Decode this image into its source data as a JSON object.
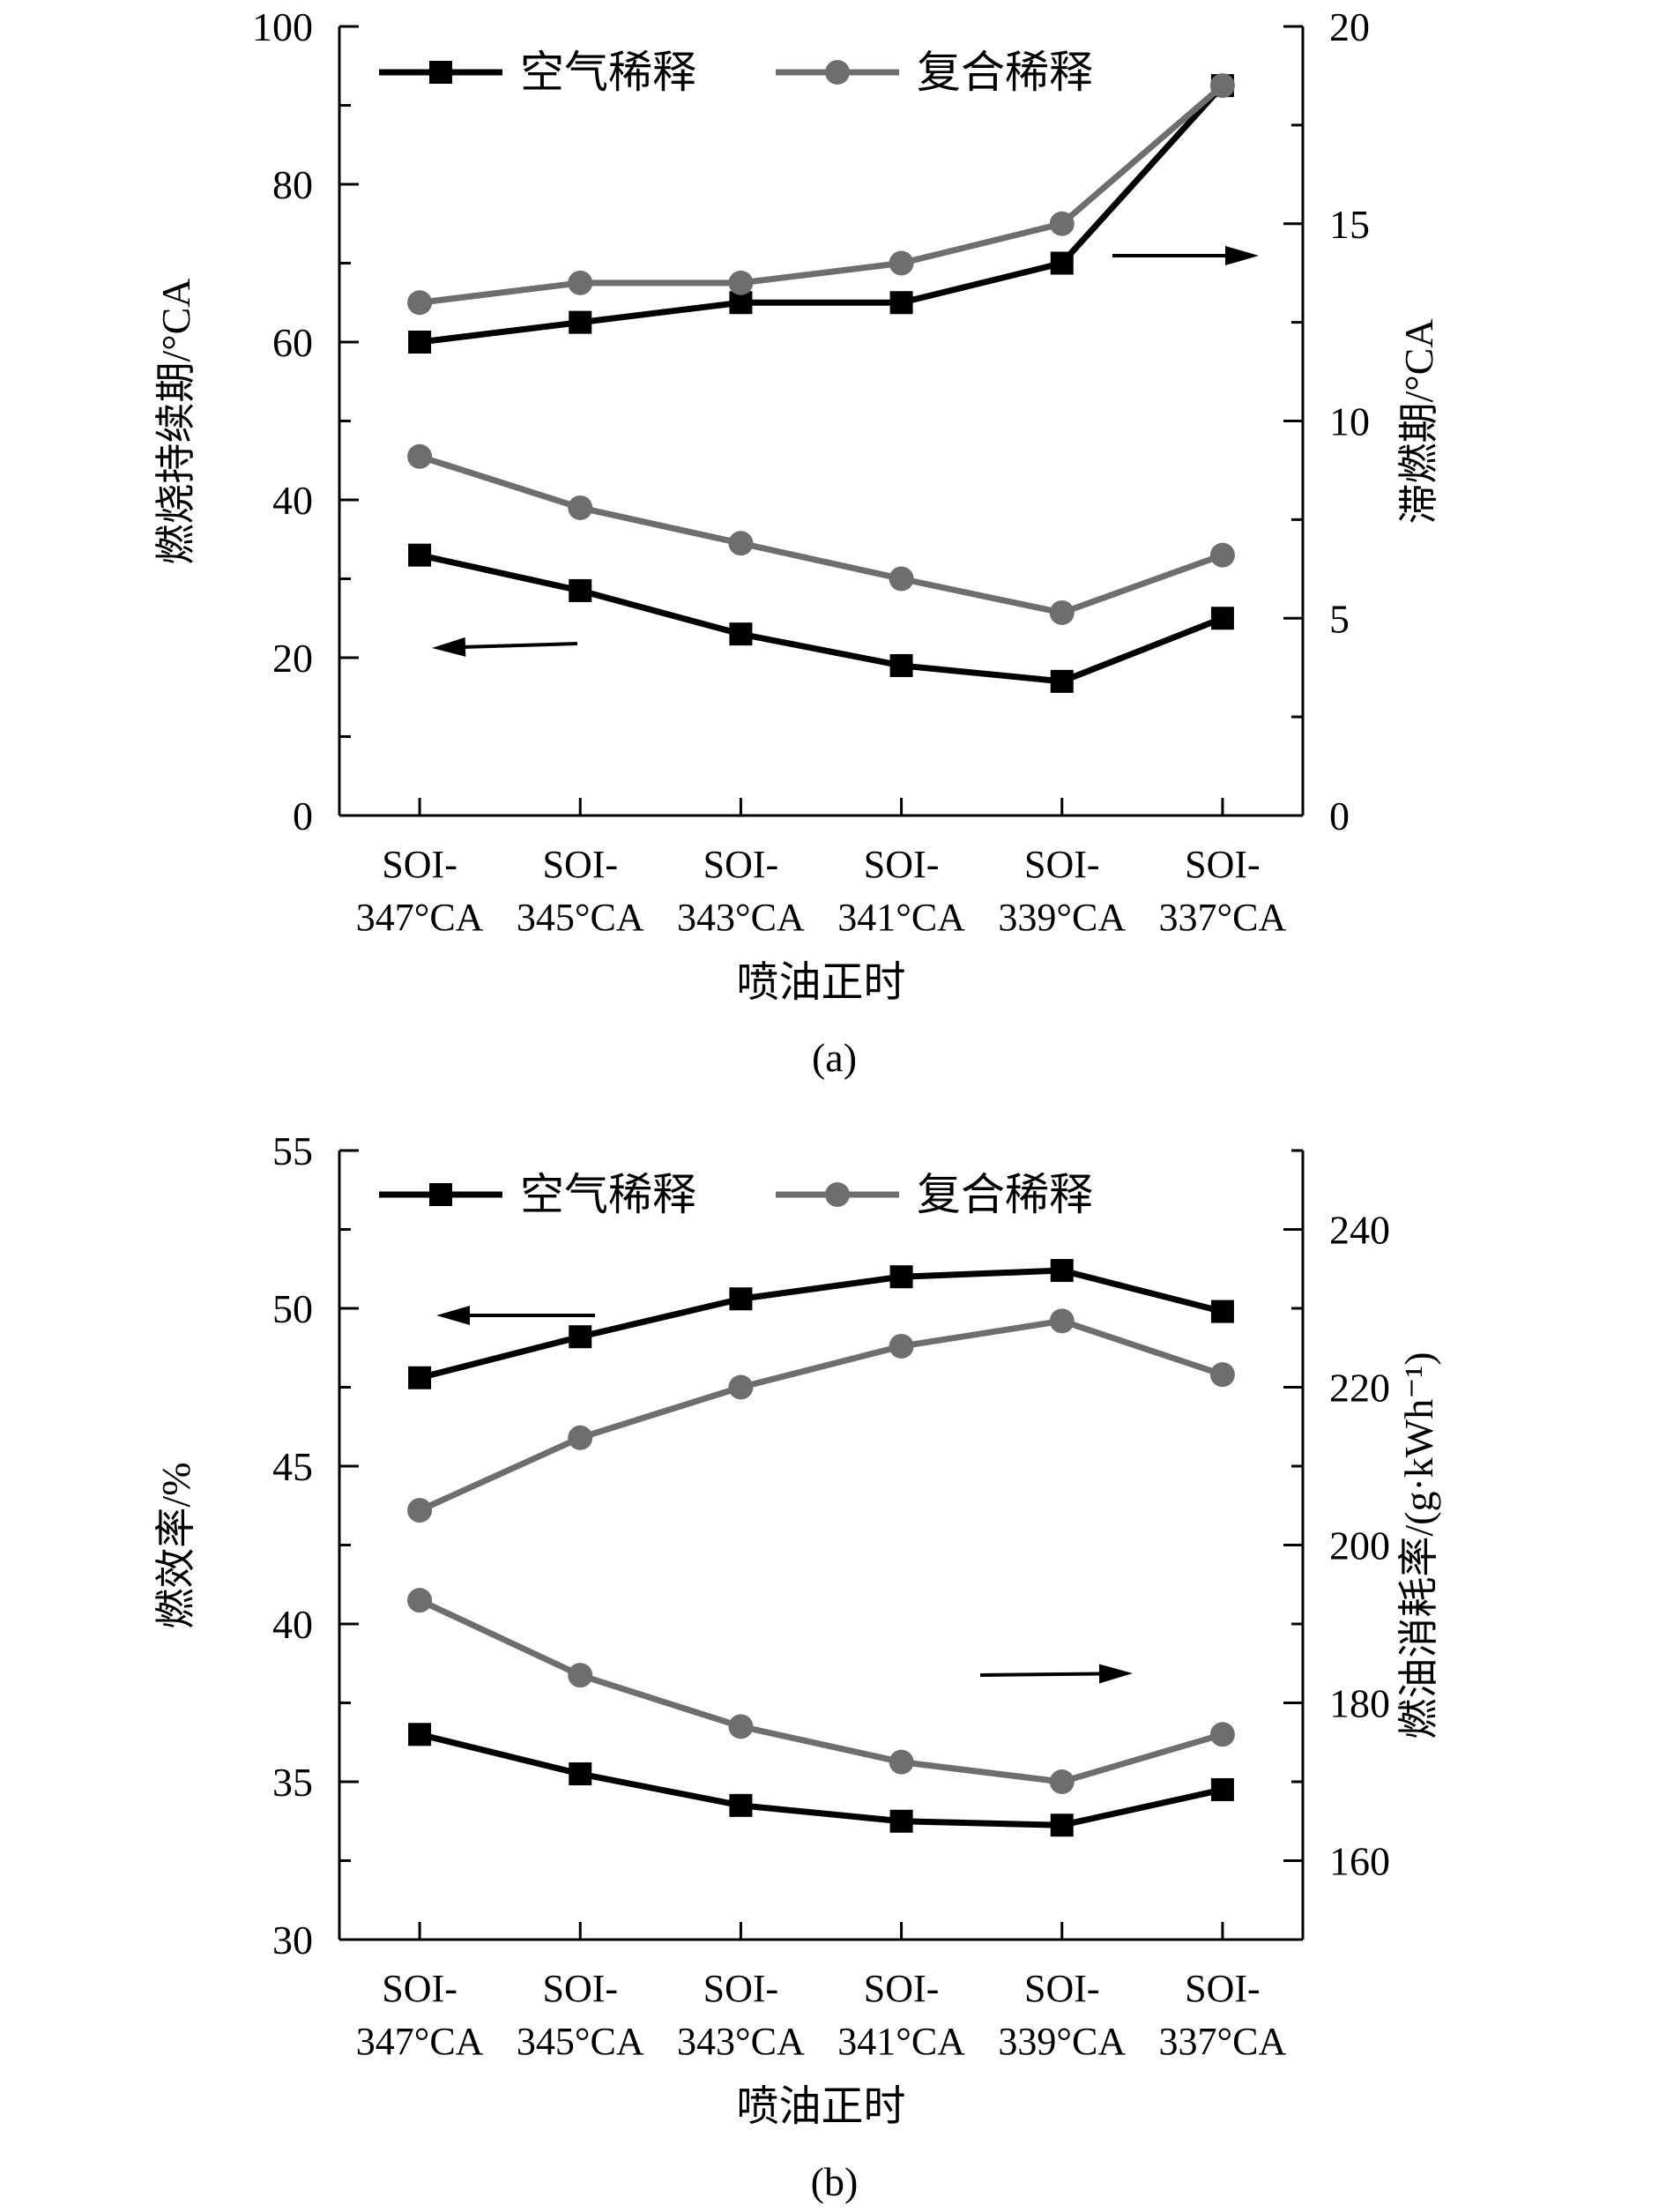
{
  "colors": {
    "air": "#000000",
    "composite": "#6e6e6e",
    "axis": "#000000",
    "background": "#ffffff"
  },
  "chart_data": [
    {
      "id": "a",
      "type": "line",
      "panel_label": "(a)",
      "xlabel": "喷油正时",
      "categories": [
        [
          "SOI-",
          "347°CA"
        ],
        [
          "SOI-",
          "345°CA"
        ],
        [
          "SOI-",
          "343°CA"
        ],
        [
          "SOI-",
          "341°CA"
        ],
        [
          "SOI-",
          "339°CA"
        ],
        [
          "SOI-",
          "337°CA"
        ]
      ],
      "left_axis": {
        "label": "燃烧持续期/°CA",
        "ylim": [
          0,
          100
        ],
        "ticks": [
          0,
          20,
          40,
          60,
          80,
          100
        ],
        "minor_step": 10
      },
      "right_axis": {
        "label": "滞燃期/°CA",
        "ylim": [
          0,
          20
        ],
        "ticks": [
          0,
          5,
          10,
          15,
          20
        ],
        "minor_step": 2.5
      },
      "legend": {
        "position": "top-left",
        "entries": [
          {
            "name": "空气稀释",
            "marker": "square"
          },
          {
            "name": "复合稀释",
            "marker": "circle"
          }
        ]
      },
      "series": [
        {
          "name": "空气稀释",
          "marker": "square",
          "axis": "left",
          "values": [
            33,
            28.5,
            23,
            19,
            17,
            25
          ]
        },
        {
          "name": "复合稀释",
          "marker": "circle",
          "axis": "left",
          "values": [
            45.5,
            39,
            34.5,
            30,
            25.7,
            33
          ]
        },
        {
          "name": "空气稀释",
          "marker": "square",
          "axis": "right",
          "values": [
            12.0,
            12.5,
            13.0,
            13.0,
            14.0,
            18.5
          ]
        },
        {
          "name": "复合稀释",
          "marker": "circle",
          "axis": "right",
          "values": [
            13.0,
            13.5,
            13.5,
            14.0,
            15.0,
            18.5
          ]
        }
      ],
      "annotations": [
        {
          "type": "arrow",
          "direction": "left"
        },
        {
          "type": "arrow",
          "direction": "right"
        }
      ]
    },
    {
      "id": "b",
      "type": "line",
      "panel_label": "(b)",
      "xlabel": "喷油正时",
      "categories": [
        [
          "SOI-",
          "347°CA"
        ],
        [
          "SOI-",
          "345°CA"
        ],
        [
          "SOI-",
          "343°CA"
        ],
        [
          "SOI-",
          "341°CA"
        ],
        [
          "SOI-",
          "339°CA"
        ],
        [
          "SOI-",
          "337°CA"
        ]
      ],
      "left_axis": {
        "label": "燃效率/%",
        "ylim": [
          30,
          55
        ],
        "ticks": [
          30,
          35,
          40,
          45,
          50,
          55
        ],
        "minor_step": 2.5
      },
      "right_axis": {
        "label": "燃油消耗率/(g·kWh⁻¹)",
        "ylim": [
          150,
          250
        ],
        "ticks": [
          160,
          180,
          200,
          220,
          240
        ],
        "minor_step": 10
      },
      "legend": {
        "position": "top-left",
        "entries": [
          {
            "name": "空气稀释",
            "marker": "square"
          },
          {
            "name": "复合稀释",
            "marker": "circle"
          }
        ]
      },
      "series": [
        {
          "name": "空气稀释",
          "marker": "square",
          "axis": "left",
          "values": [
            47.8,
            49.1,
            50.3,
            51.0,
            51.2,
            49.9
          ]
        },
        {
          "name": "复合稀释",
          "marker": "circle",
          "axis": "left",
          "values": [
            43.6,
            45.9,
            47.5,
            48.8,
            49.6,
            47.9
          ]
        },
        {
          "name": "空气稀释",
          "marker": "square",
          "axis": "right",
          "values": [
            176,
            171,
            167,
            165,
            164.5,
            169
          ]
        },
        {
          "name": "复合稀释",
          "marker": "circle",
          "axis": "right",
          "values": [
            193,
            183.5,
            177,
            172.5,
            170,
            176
          ]
        }
      ],
      "annotations": [
        {
          "type": "arrow",
          "direction": "left"
        },
        {
          "type": "arrow",
          "direction": "right"
        }
      ]
    }
  ]
}
